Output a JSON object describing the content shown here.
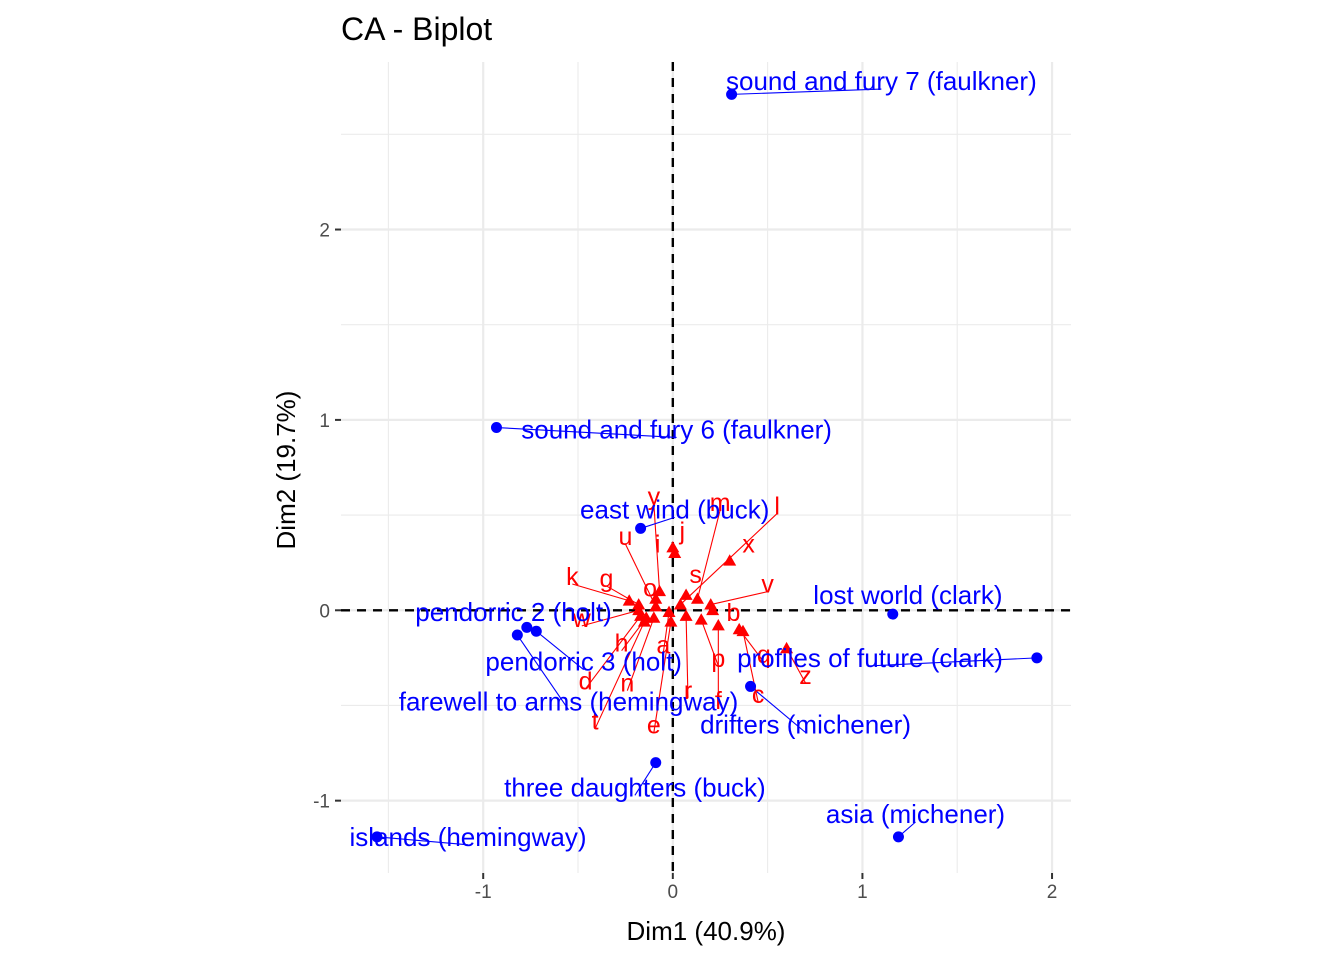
{
  "chart_data": {
    "type": "scatter",
    "title": "CA - Biplot",
    "xlabel": "Dim1 (40.9%)",
    "ylabel": "Dim2 (19.7%)",
    "xlim": [
      -1.75,
      2.1
    ],
    "ylim": [
      -1.38,
      2.88
    ],
    "x_ticks": [
      -1,
      0,
      1,
      2
    ],
    "y_ticks": [
      -1,
      0,
      1,
      2
    ],
    "x_tick_labels": [
      "-1",
      "0",
      "1",
      "2"
    ],
    "y_tick_labels": [
      "-1",
      "0",
      "1",
      "2"
    ],
    "grid": true,
    "row_color": "#0000ff",
    "col_color": "#ff0000",
    "rows": [
      {
        "label": "sound and fury 7 (faulkner)",
        "x": 0.31,
        "y": 2.71,
        "lx": 1.1,
        "ly": 2.78
      },
      {
        "label": "sound and fury 6 (faulkner)",
        "x": -0.93,
        "y": 0.96,
        "lx": 0.02,
        "ly": 0.95
      },
      {
        "label": "east wind (buck)",
        "x": -0.17,
        "y": 0.43,
        "lx": 0.01,
        "ly": 0.53
      },
      {
        "label": "lost world (clark)",
        "x": 1.16,
        "y": -0.02,
        "lx": 1.24,
        "ly": 0.08
      },
      {
        "label": "pendorric 2 (holt)",
        "x": -0.77,
        "y": -0.09,
        "lx": -0.84,
        "ly": -0.01
      },
      {
        "label": "pendorric 3 (holt)",
        "x": -0.72,
        "y": -0.11,
        "lx": -0.47,
        "ly": -0.27
      },
      {
        "label": "farewell to arms (hemingway)",
        "x": -0.82,
        "y": -0.13,
        "lx": -0.55,
        "ly": -0.48
      },
      {
        "label": "profiles of future (clark)",
        "x": 1.92,
        "y": -0.25,
        "lx": 1.04,
        "ly": -0.25
      },
      {
        "label": "drifters (michener)",
        "x": 0.41,
        "y": -0.4,
        "lx": 0.7,
        "ly": -0.6
      },
      {
        "label": "three daughters (buck)",
        "x": -0.09,
        "y": -0.8,
        "lx": -0.2,
        "ly": -0.93
      },
      {
        "label": "asia (michener)",
        "x": 1.19,
        "y": -1.19,
        "lx": 1.28,
        "ly": -1.07
      },
      {
        "label": "islands (hemingway)",
        "x": -1.56,
        "y": -1.19,
        "lx": -1.08,
        "ly": -1.19
      }
    ],
    "cols": [
      {
        "label": "y",
        "x": -0.07,
        "y": 0.1,
        "lx": -0.1,
        "ly": 0.6
      },
      {
        "label": "m",
        "x": 0.13,
        "y": 0.06,
        "lx": 0.25,
        "ly": 0.57
      },
      {
        "label": "l",
        "x": 0.04,
        "y": 0.03,
        "lx": 0.55,
        "ly": 0.55
      },
      {
        "label": "j",
        "x": 0.0,
        "y": 0.33,
        "lx": 0.05,
        "ly": 0.42
      },
      {
        "label": "u",
        "x": -0.09,
        "y": 0.02,
        "lx": -0.25,
        "ly": 0.39
      },
      {
        "label": "i",
        "x": 0.01,
        "y": 0.3,
        "lx": -0.08,
        "ly": 0.35
      },
      {
        "label": "x",
        "x": 0.3,
        "y": 0.26,
        "lx": 0.4,
        "ly": 0.35
      },
      {
        "label": "s",
        "x": 0.07,
        "y": 0.08,
        "lx": 0.12,
        "ly": 0.19
      },
      {
        "label": "k",
        "x": -0.23,
        "y": 0.05,
        "lx": -0.53,
        "ly": 0.18
      },
      {
        "label": "g",
        "x": -0.18,
        "y": 0.03,
        "lx": -0.35,
        "ly": 0.17
      },
      {
        "label": "v",
        "x": 0.2,
        "y": 0.03,
        "lx": 0.5,
        "ly": 0.14
      },
      {
        "label": "o",
        "x": -0.09,
        "y": 0.06,
        "lx": -0.12,
        "ly": 0.12
      },
      {
        "label": "b",
        "x": 0.21,
        "y": 0.0,
        "lx": 0.32,
        "ly": -0.01
      },
      {
        "label": "w",
        "x": -0.18,
        "y": 0.0,
        "lx": -0.48,
        "ly": -0.04
      },
      {
        "label": "h",
        "x": -0.14,
        "y": -0.04,
        "lx": -0.27,
        "ly": -0.17
      },
      {
        "label": "a",
        "x": -0.02,
        "y": -0.01,
        "lx": -0.05,
        "ly": -0.18
      },
      {
        "label": "q",
        "x": 0.35,
        "y": -0.1,
        "lx": 0.48,
        "ly": -0.23
      },
      {
        "label": "z",
        "x": 0.6,
        "y": -0.2,
        "lx": 0.7,
        "ly": -0.34
      },
      {
        "label": "d",
        "x": -0.17,
        "y": -0.03,
        "lx": -0.46,
        "ly": -0.37
      },
      {
        "label": "n",
        "x": -0.1,
        "y": -0.04,
        "lx": -0.24,
        "ly": -0.38
      },
      {
        "label": "c",
        "x": 0.37,
        "y": -0.11,
        "lx": 0.45,
        "ly": -0.44
      },
      {
        "label": "r",
        "x": 0.07,
        "y": -0.03,
        "lx": 0.08,
        "ly": -0.42
      },
      {
        "label": "f",
        "x": 0.24,
        "y": -0.08,
        "lx": 0.24,
        "ly": -0.47
      },
      {
        "label": "e",
        "x": -0.01,
        "y": -0.06,
        "lx": -0.1,
        "ly": -0.6
      },
      {
        "label": "t",
        "x": -0.15,
        "y": -0.06,
        "lx": -0.41,
        "ly": -0.58
      },
      {
        "label": "p",
        "x": 0.15,
        "y": -0.05,
        "lx": 0.24,
        "ly": -0.25
      }
    ]
  }
}
